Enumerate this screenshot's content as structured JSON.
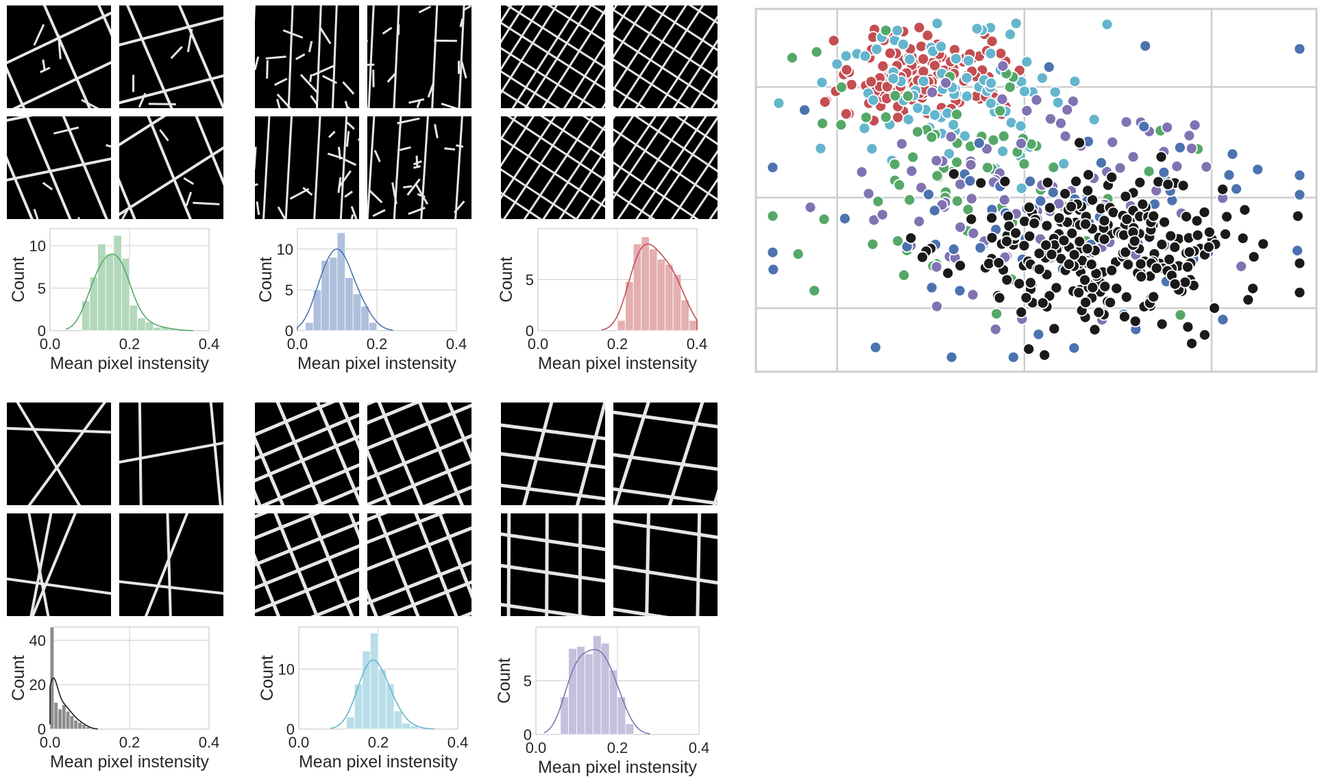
{
  "colors": {
    "green": "#55a868",
    "blue": "#4c72b0",
    "red": "#c44e52",
    "black": "#1a1a1a",
    "cyan": "#64b5cd",
    "purple": "#8172b2",
    "grid": "#cccccc",
    "tile_bg": "#000000",
    "road": "#e6e6e6"
  },
  "chart_data": [
    {
      "type": "histogram",
      "panel": "top-left",
      "color": "green",
      "xlabel": "Mean pixel instensity",
      "ylabel": "Count",
      "xlim": [
        0.0,
        0.4
      ],
      "ylim": [
        0,
        12
      ],
      "xticks": [
        "0.0",
        "0.2",
        "0.4"
      ],
      "yticks": [
        "0",
        "5",
        "10"
      ],
      "bin_width": 0.02,
      "bins": [
        0.08,
        0.1,
        0.12,
        0.14,
        0.16,
        0.18,
        0.2,
        0.22,
        0.24,
        0.26,
        0.28,
        0.3
      ],
      "counts": [
        3.5,
        6.3,
        10.2,
        9.0,
        11.2,
        8.5,
        3.0,
        1.5,
        1.0,
        0.4,
        0.4,
        0.2
      ],
      "kde_peak": 9.0
    },
    {
      "type": "histogram",
      "panel": "top-middle",
      "color": "blue",
      "xlabel": "Mean pixel instensity",
      "ylabel": "Count",
      "xlim": [
        0.0,
        0.4
      ],
      "ylim": [
        0,
        12.5
      ],
      "xticks": [
        "0.0",
        "0.2",
        "0.4"
      ],
      "yticks": [
        "0",
        "5",
        "10"
      ],
      "bin_width": 0.02,
      "bins": [
        0.02,
        0.04,
        0.06,
        0.08,
        0.1,
        0.12,
        0.14,
        0.16,
        0.18
      ],
      "counts": [
        1.0,
        5.0,
        8.6,
        9.0,
        12.0,
        6.5,
        4.5,
        3.0,
        1.0
      ],
      "kde_peak": 10.0
    },
    {
      "type": "histogram",
      "panel": "top-right",
      "color": "red",
      "xlabel": "Mean pixel instensity",
      "ylabel": "Count",
      "xlim": [
        0.0,
        0.4
      ],
      "ylim": [
        0,
        10
      ],
      "xticks": [
        "0.0",
        "0.2",
        "0.4"
      ],
      "yticks": [
        "0",
        "5"
      ],
      "bin_width": 0.02,
      "bins": [
        0.2,
        0.22,
        0.24,
        0.26,
        0.28,
        0.3,
        0.32,
        0.34,
        0.36,
        0.38
      ],
      "counts": [
        1.0,
        4.8,
        8.5,
        9.2,
        8.0,
        7.0,
        6.5,
        5.5,
        3.0,
        1.0
      ],
      "kde_peak": 8.5
    },
    {
      "type": "histogram",
      "panel": "bottom-left",
      "color": "black",
      "xlabel": "Mean pixel instensity",
      "ylabel": "Count",
      "xlim": [
        0.0,
        0.4
      ],
      "ylim": [
        0,
        46
      ],
      "xticks": [
        "0.0",
        "0.2",
        "0.4"
      ],
      "yticks": [
        "0",
        "20",
        "40"
      ],
      "bin_width": 0.01,
      "bins": [
        0.0,
        0.01,
        0.02,
        0.03,
        0.04,
        0.05,
        0.06,
        0.07,
        0.08,
        0.09
      ],
      "counts": [
        46,
        12,
        9,
        11,
        8,
        6,
        4,
        3,
        2,
        1
      ],
      "kde_peak": 23
    },
    {
      "type": "histogram",
      "panel": "bottom-middle",
      "color": "cyan",
      "xlabel": "Mean pixel instensity",
      "ylabel": "Count",
      "xlim": [
        0.0,
        0.4
      ],
      "ylim": [
        0,
        17
      ],
      "xticks": [
        "0.0",
        "0.2",
        "0.4"
      ],
      "yticks": [
        "0",
        "10"
      ],
      "bin_width": 0.02,
      "bins": [
        0.12,
        0.14,
        0.16,
        0.18,
        0.2,
        0.22,
        0.24,
        0.26,
        0.28
      ],
      "counts": [
        2.0,
        7.5,
        13.0,
        16.0,
        10.0,
        7.5,
        3.0,
        1.0,
        0.5
      ],
      "kde_peak": 11.5
    },
    {
      "type": "histogram",
      "panel": "bottom-right",
      "color": "purple",
      "xlabel": "Mean pixel instensity",
      "ylabel": "Count",
      "xlim": [
        0.0,
        0.4
      ],
      "ylim": [
        0,
        10
      ],
      "xticks": [
        "0.0",
        "0.2",
        "0.4"
      ],
      "yticks": [
        "0",
        "5"
      ],
      "bin_width": 0.02,
      "bins": [
        0.06,
        0.08,
        0.1,
        0.12,
        0.14,
        0.16,
        0.18,
        0.2,
        0.22
      ],
      "counts": [
        3.5,
        8.0,
        8.2,
        7.5,
        9.2,
        8.5,
        6.0,
        3.5,
        1.0
      ],
      "kde_peak": 7.9
    },
    {
      "type": "scatter",
      "panel": "embedding",
      "grid": true,
      "axes_ticks_labels": false,
      "clusters": [
        {
          "color": "red",
          "cx": 0.3,
          "cy": 0.19,
          "sx": 0.08,
          "sy": 0.06,
          "n": 140
        },
        {
          "color": "cyan",
          "cx": 0.36,
          "cy": 0.26,
          "sx": 0.13,
          "sy": 0.1,
          "n": 90
        },
        {
          "color": "green",
          "cx": 0.4,
          "cy": 0.45,
          "sx": 0.16,
          "sy": 0.17,
          "n": 75
        },
        {
          "color": "purple",
          "cx": 0.48,
          "cy": 0.48,
          "sx": 0.17,
          "sy": 0.16,
          "n": 90
        },
        {
          "color": "blue",
          "cx": 0.54,
          "cy": 0.6,
          "sx": 0.2,
          "sy": 0.17,
          "n": 70
        },
        {
          "color": "black",
          "cx": 0.63,
          "cy": 0.67,
          "sx": 0.13,
          "sy": 0.11,
          "n": 260
        }
      ]
    }
  ]
}
